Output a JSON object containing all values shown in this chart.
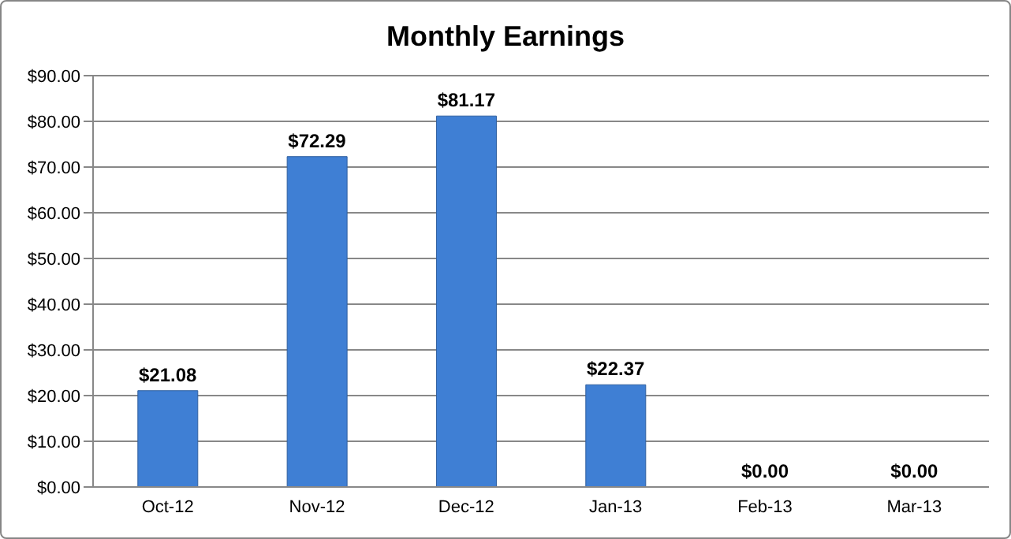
{
  "chart_data": {
    "type": "bar",
    "title": "Monthly Earnings",
    "categories": [
      "Oct-12",
      "Nov-12",
      "Dec-12",
      "Jan-13",
      "Feb-13",
      "Mar-13"
    ],
    "values": [
      21.08,
      72.29,
      81.17,
      22.37,
      0,
      0
    ],
    "value_labels": [
      "$21.08",
      "$72.29",
      "$81.17",
      "$22.37",
      "$0.00",
      "$0.00"
    ],
    "color": "#3f7fd4",
    "ylim": [
      0,
      90
    ],
    "yticks": [
      {
        "value": 0,
        "label": "$0.00"
      },
      {
        "value": 10,
        "label": "$10.00"
      },
      {
        "value": 20,
        "label": "$20.00"
      },
      {
        "value": 30,
        "label": "$30.00"
      },
      {
        "value": 40,
        "label": "$40.00"
      },
      {
        "value": 50,
        "label": "$50.00"
      },
      {
        "value": 60,
        "label": "$60.00"
      },
      {
        "value": 70,
        "label": "$70.00"
      },
      {
        "value": 80,
        "label": "$80.00"
      },
      {
        "value": 90,
        "label": "$90.00"
      }
    ],
    "grid": "y",
    "legend": false
  }
}
